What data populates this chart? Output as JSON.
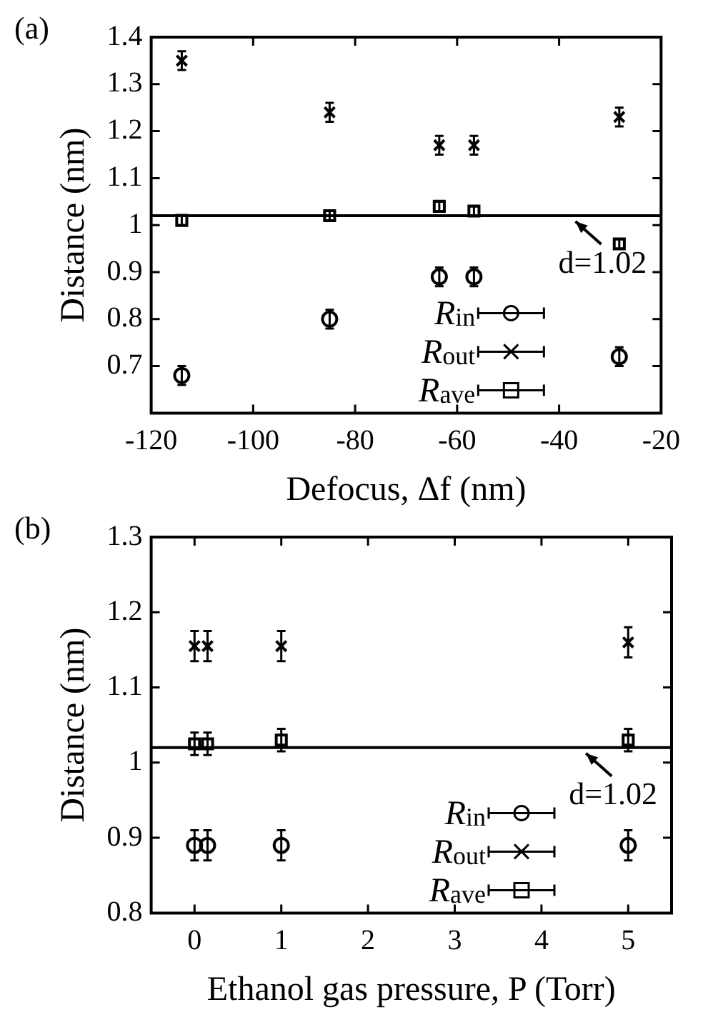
{
  "chart_data": [
    {
      "type": "scatter",
      "annotations": [
        "(a)"
      ],
      "xlabel": "Defocus, Δf (nm)",
      "ylabel": "Distance (nm)",
      "xlim": [
        -120,
        -20
      ],
      "xticks": [
        -120,
        -100,
        -80,
        -60,
        -40,
        -20
      ],
      "ylim": [
        0.6,
        1.4
      ],
      "yticks": [
        0.7,
        0.8,
        0.9,
        1,
        1.1,
        1.2,
        1.3,
        1.4
      ],
      "legend": "bottom right",
      "ref_lines": [
        {
          "axis": "y",
          "value": 1.02,
          "label": "d=1.02"
        }
      ],
      "series": [
        {
          "name": "R$_{in}$",
          "color": "#000000",
          "marker": "circle",
          "x": [
            -114,
            -85,
            -63.5,
            -56.7,
            -28.2
          ],
          "values": [
            0.68,
            0.8,
            0.89,
            0.89,
            0.72
          ],
          "errors": [
            0.02,
            0.02,
            0.02,
            0.02,
            0.02
          ]
        },
        {
          "name": "R$_{out}$",
          "color": "#000000",
          "marker": "cross",
          "x": [
            -114,
            -85,
            -63.5,
            -56.7,
            -28.2
          ],
          "values": [
            1.35,
            1.24,
            1.17,
            1.17,
            1.23
          ],
          "errors": [
            0.02,
            0.02,
            0.02,
            0.02,
            0.02
          ]
        },
        {
          "name": "R$_{ave}$",
          "color": "#000000",
          "marker": "square",
          "x": [
            -114,
            -85,
            -63.5,
            -56.7,
            -28.2
          ],
          "values": [
            1.01,
            1.02,
            1.04,
            1.03,
            0.96
          ],
          "errors": [
            0.01,
            0.01,
            0.01,
            0.01,
            0.01
          ]
        }
      ]
    },
    {
      "type": "scatter",
      "annotations": [
        "(b)"
      ],
      "xlabel": "Ethanol gas pressure, P (Torr)",
      "ylabel": "Distance (nm)",
      "xlim": [
        -0.5,
        5.5
      ],
      "xticks": [
        0,
        1,
        2,
        3,
        4,
        5
      ],
      "ylim": [
        0.8,
        1.3
      ],
      "yticks": [
        0.8,
        0.9,
        1,
        1.1,
        1.2,
        1.3
      ],
      "legend": "bottom right",
      "ref_lines": [
        {
          "axis": "y",
          "value": 1.02,
          "label": "d=1.02"
        }
      ],
      "series": [
        {
          "name": "R$_{in}$",
          "color": "#000000",
          "marker": "circle",
          "x": [
            0,
            0.15,
            1,
            5
          ],
          "values": [
            0.89,
            0.89,
            0.89,
            0.89
          ],
          "errors": [
            0.02,
            0.02,
            0.02,
            0.02
          ]
        },
        {
          "name": "R$_{out}$",
          "color": "#000000",
          "marker": "cross",
          "x": [
            0,
            0.15,
            1,
            5
          ],
          "values": [
            1.155,
            1.155,
            1.155,
            1.16
          ],
          "errors": [
            0.02,
            0.02,
            0.02,
            0.02
          ]
        },
        {
          "name": "R$_{ave}$",
          "color": "#000000",
          "marker": "square",
          "x": [
            0,
            0.15,
            1,
            5
          ],
          "values": [
            1.025,
            1.025,
            1.03,
            1.03
          ],
          "errors": [
            0.015,
            0.015,
            0.015,
            0.015
          ]
        }
      ]
    }
  ]
}
